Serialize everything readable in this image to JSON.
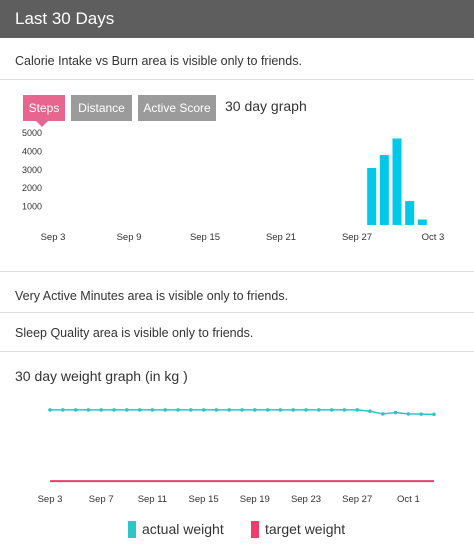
{
  "header": {
    "title": "Last 30 Days"
  },
  "notices": {
    "calorie": "Calorie Intake vs Burn area is visible only to friends.",
    "active_minutes": "Very Active Minutes area is visible only to friends.",
    "sleep": "Sleep Quality area is visible only to friends."
  },
  "activity": {
    "tabs": [
      {
        "label": "Steps",
        "active": true
      },
      {
        "label": "Distance",
        "active": false
      },
      {
        "label": "Active Score",
        "active": false
      }
    ],
    "graph_title": "30 day graph"
  },
  "weight": {
    "title": "30 day weight graph (in kg )",
    "legend": {
      "actual": "actual weight",
      "target": "target weight"
    }
  },
  "colors": {
    "accent_pink": "#e7668f",
    "bar_cyan": "#00c8e8",
    "actual_line": "#2ec5c9",
    "target_line": "#ef3e6b",
    "header_bg": "#5e5e5e"
  },
  "chart_data": [
    {
      "type": "bar",
      "title": "30 day graph",
      "x_tick_labels": [
        "Sep 3",
        "Sep 9",
        "Sep 15",
        "Sep 21",
        "Sep 27",
        "Oct 3"
      ],
      "y_tick_labels": [
        "1000",
        "2000",
        "3000",
        "4000",
        "5000"
      ],
      "ylim": [
        0,
        5200
      ],
      "grid": false,
      "series": [
        {
          "x": [
            "Sep 28",
            "Sep 29",
            "Sep 30",
            "Oct 1",
            "Oct 2"
          ],
          "values": [
            3100,
            3800,
            4700,
            1300,
            300
          ]
        }
      ]
    },
    {
      "type": "line",
      "title": "30 day weight graph (in kg )",
      "x_tick_labels": [
        "Sep 3",
        "Sep 7",
        "Sep 11",
        "Sep 15",
        "Sep 19",
        "Sep 23",
        "Sep 27",
        "Oct 1"
      ],
      "x": [
        "Sep 3",
        "Sep 4",
        "Sep 5",
        "Sep 6",
        "Sep 7",
        "Sep 8",
        "Sep 9",
        "Sep 10",
        "Sep 11",
        "Sep 12",
        "Sep 13",
        "Sep 14",
        "Sep 15",
        "Sep 16",
        "Sep 17",
        "Sep 18",
        "Sep 19",
        "Sep 20",
        "Sep 21",
        "Sep 22",
        "Sep 23",
        "Sep 24",
        "Sep 25",
        "Sep 26",
        "Sep 27",
        "Sep 28",
        "Sep 29",
        "Sep 30",
        "Oct 1",
        "Oct 2",
        "Oct 3"
      ],
      "ylim": [
        0,
        100
      ],
      "y_axis_labels_shown": false,
      "legend": "bottom-center",
      "series": [
        {
          "name": "actual weight",
          "values": [
            90,
            90,
            90,
            90,
            90,
            90,
            90,
            90,
            90,
            90,
            90,
            90,
            90,
            90,
            90,
            90,
            90,
            90,
            90,
            90,
            90,
            90,
            90,
            90,
            90,
            88.5,
            85.5,
            87,
            85.5,
            85.2,
            85
          ]
        },
        {
          "name": "target weight",
          "values": [
            10,
            10,
            10,
            10,
            10,
            10,
            10,
            10,
            10,
            10,
            10,
            10,
            10,
            10,
            10,
            10,
            10,
            10,
            10,
            10,
            10,
            10,
            10,
            10,
            10,
            10,
            10,
            10,
            10,
            10,
            10
          ]
        }
      ]
    }
  ]
}
